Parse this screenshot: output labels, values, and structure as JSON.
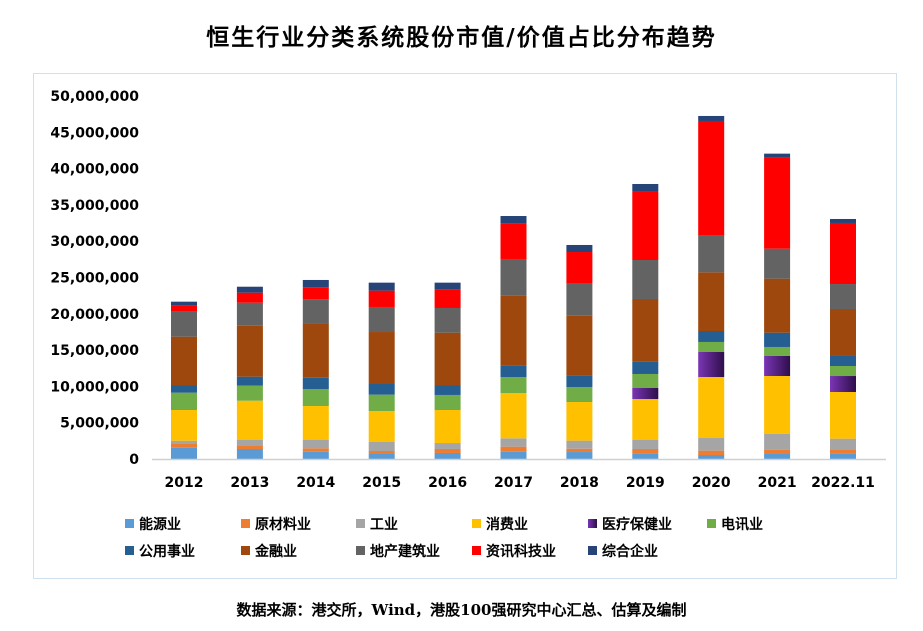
{
  "title": "恒生行业分类系统股份市值/价值占比分布趋势",
  "source": "数据来源：港交所，Wind，港股100强研究中心汇总、估算及编制",
  "chart_data": {
    "type": "bar",
    "stacked": true,
    "title": "恒生行业分类系统股份市值/价值占比分布趋势",
    "xlabel": "",
    "ylabel": "",
    "ylim": [
      0,
      50000000
    ],
    "yticks": [
      0,
      5000000,
      10000000,
      15000000,
      20000000,
      25000000,
      30000000,
      35000000,
      40000000,
      45000000,
      50000000
    ],
    "ytick_labels": [
      "0",
      "5,000,000",
      "10,000,000",
      "15,000,000",
      "20,000,000",
      "25,000,000",
      "30,000,000",
      "35,000,000",
      "40,000,000",
      "45,000,000",
      "50,000,000"
    ],
    "grid": false,
    "legend_position": "bottom",
    "categories": [
      "2012",
      "2013",
      "2014",
      "2015",
      "2016",
      "2017",
      "2018",
      "2019",
      "2020",
      "2021",
      "2022.11"
    ],
    "series": [
      {
        "name": "能源业",
        "color": "#5B9BD5",
        "values": [
          1560000,
          1380000,
          1010000,
          690000,
          830000,
          1010000,
          960000,
          780000,
          550000,
          690000,
          780000
        ]
      },
      {
        "name": "原材料业",
        "color": "#ED7D31",
        "values": [
          600000,
          410000,
          460000,
          410000,
          550000,
          690000,
          460000,
          600000,
          600000,
          600000,
          460000
        ]
      },
      {
        "name": "工业",
        "color": "#A5A5A5",
        "values": [
          360000,
          830000,
          1150000,
          1240000,
          820000,
          1150000,
          1110000,
          1240000,
          1740000,
          2200000,
          1560000
        ]
      },
      {
        "name": "消费业",
        "color": "#FFC000",
        "values": [
          4230000,
          5410000,
          4680000,
          4270000,
          4550000,
          6240000,
          5320000,
          5640000,
          8400000,
          7940000,
          6430000
        ]
      },
      {
        "name": "医疗保健业",
        "color": "#7030A0",
        "values": [
          0,
          0,
          0,
          0,
          0,
          0,
          0,
          1520000,
          3450000,
          2760000,
          2200000
        ]
      },
      {
        "name": "电讯业",
        "color": "#70AD47",
        "values": [
          2390000,
          2070000,
          2340000,
          2250000,
          2070000,
          2200000,
          2070000,
          1930000,
          1380000,
          1240000,
          1380000
        ]
      },
      {
        "name": "公用事业",
        "color": "#255E91",
        "values": [
          1050000,
          1240000,
          1560000,
          1470000,
          1370000,
          1610000,
          1600000,
          1700000,
          1510000,
          1970000,
          1380000
        ]
      },
      {
        "name": "金融业",
        "color": "#9E480E",
        "values": [
          6660000,
          7020000,
          7400000,
          7160000,
          7210000,
          9600000,
          8220000,
          8630000,
          8080000,
          7440000,
          6470000
        ]
      },
      {
        "name": "地产建筑业",
        "color": "#636363",
        "values": [
          3440000,
          3170000,
          3390000,
          3450000,
          3400000,
          5050000,
          4500000,
          5370000,
          5050000,
          4130000,
          3440000
        ]
      },
      {
        "name": "资讯科技业",
        "color": "#FF0000",
        "values": [
          830000,
          1380000,
          1660000,
          2250000,
          2520000,
          4860000,
          4270000,
          9500000,
          15800000,
          12540000,
          8410000
        ]
      },
      {
        "name": "综合企业",
        "color": "#264478",
        "values": [
          550000,
          820000,
          1010000,
          1100000,
          970000,
          1060000,
          970000,
          970000,
          690000,
          550000,
          550000
        ]
      }
    ]
  }
}
